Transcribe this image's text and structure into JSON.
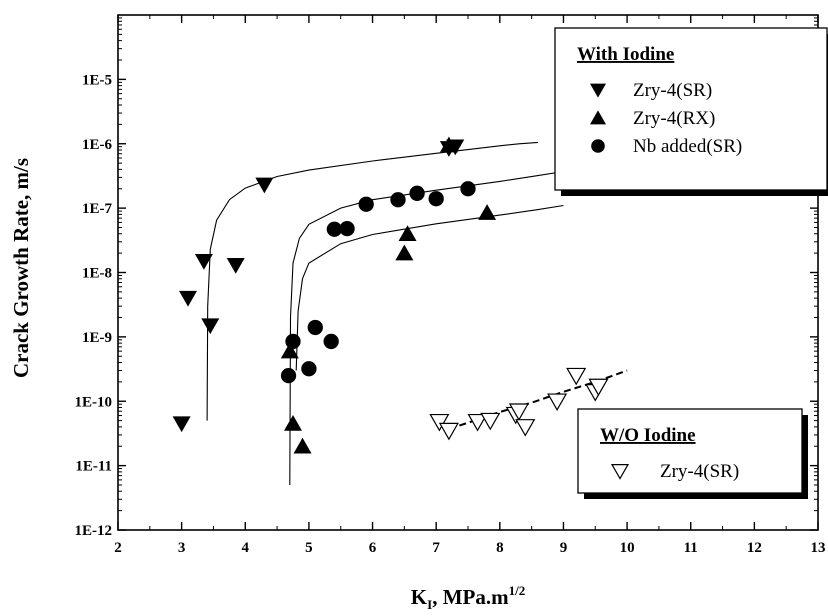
{
  "chart_data": {
    "type": "scatter",
    "xlabel": "K",
    "xlabel_sub": "I",
    "xlabel_rest": ", MPa.m",
    "xlabel_sup": "1/2",
    "ylabel": "Crack Growth Rate, m/s",
    "xlim": [
      2,
      13
    ],
    "ylim": [
      1e-12,
      0.0001
    ],
    "yscale": "log",
    "x_ticks": [
      "2",
      "3",
      "4",
      "5",
      "6",
      "7",
      "8",
      "9",
      "10",
      "11",
      "12",
      "13"
    ],
    "y_ticks": [
      "1E-12",
      "1E-11",
      "1E-10",
      "1E-9",
      "1E-8",
      "1E-7",
      "1E-6",
      "1E-5"
    ],
    "grid": false,
    "legends": [
      {
        "title": "With Iodine",
        "position": "top-right",
        "entries": [
          {
            "marker": "triangle-down-filled",
            "label": "Zry-4(SR)"
          },
          {
            "marker": "triangle-up-filled",
            "label": "Zry-4(RX)"
          },
          {
            "marker": "circle-filled",
            "label": "Nb added(SR)"
          }
        ]
      },
      {
        "title": "W/O Iodine",
        "position": "bottom-right",
        "entries": [
          {
            "marker": "triangle-down-open",
            "label": "Zry-4(SR)"
          }
        ]
      }
    ],
    "series": [
      {
        "marker": "triangle-down-filled",
        "points": [
          [
            3.0,
            4.5e-11
          ],
          [
            3.1,
            4e-09
          ],
          [
            3.35,
            1.5e-08
          ],
          [
            3.45,
            1.5e-09
          ],
          [
            3.85,
            1.3e-08
          ],
          [
            4.3,
            2.3e-07
          ],
          [
            7.2,
            8.5e-07
          ],
          [
            7.3,
            9e-07
          ]
        ]
      },
      {
        "marker": "triangle-up-filled",
        "points": [
          [
            4.7,
            6e-10
          ],
          [
            4.75,
            4.5e-11
          ],
          [
            4.9,
            2e-11
          ],
          [
            6.5,
            2e-08
          ],
          [
            6.55,
            4e-08
          ],
          [
            7.8,
            8.5e-08
          ],
          [
            7.2,
            9.5e-07
          ]
        ]
      },
      {
        "marker": "circle-filled",
        "points": [
          [
            4.68,
            2.5e-10
          ],
          [
            4.75,
            8.5e-10
          ],
          [
            5.0,
            3.2e-10
          ],
          [
            5.1,
            1.4e-09
          ],
          [
            5.35,
            8.5e-10
          ],
          [
            5.4,
            4.7e-08
          ],
          [
            5.6,
            4.8e-08
          ],
          [
            5.9,
            1.15e-07
          ],
          [
            6.4,
            1.35e-07
          ],
          [
            6.7,
            1.7e-07
          ],
          [
            7.0,
            1.4e-07
          ],
          [
            7.5,
            2e-07
          ]
        ]
      },
      {
        "marker": "triangle-down-open",
        "points": [
          [
            7.05,
            4.8e-11
          ],
          [
            7.2,
            3.5e-11
          ],
          [
            7.65,
            4.8e-11
          ],
          [
            7.85,
            5e-11
          ],
          [
            8.25,
            6.2e-11
          ],
          [
            8.3,
            7e-11
          ],
          [
            8.4,
            4e-11
          ],
          [
            8.9,
            1e-10
          ],
          [
            9.2,
            2.5e-10
          ],
          [
            9.5,
            1.4e-10
          ],
          [
            9.55,
            1.7e-10
          ]
        ]
      }
    ],
    "fit_curves": [
      {
        "style": "solid",
        "points": [
          [
            3.4,
            5e-11
          ],
          [
            3.41,
            3e-09
          ],
          [
            3.45,
            2.3e-08
          ],
          [
            3.55,
            6.5e-08
          ],
          [
            3.75,
            1.35e-07
          ],
          [
            4.0,
            2.05e-07
          ],
          [
            4.5,
            3.1e-07
          ],
          [
            5.0,
            3.9e-07
          ],
          [
            6.0,
            5.4e-07
          ],
          [
            7.0,
            7.1e-07
          ],
          [
            8.0,
            9.3e-07
          ],
          [
            8.3,
            1e-06
          ],
          [
            8.6,
            1.05e-06
          ]
        ]
      },
      {
        "style": "solid",
        "points": [
          [
            4.7,
            5e-12
          ],
          [
            4.71,
            2e-09
          ],
          [
            4.75,
            1.4e-08
          ],
          [
            4.85,
            3.4e-08
          ],
          [
            5.0,
            5.6e-08
          ],
          [
            5.5,
            1e-07
          ],
          [
            6.0,
            1.35e-07
          ],
          [
            7.0,
            1.9e-07
          ],
          [
            8.0,
            2.6e-07
          ],
          [
            8.6,
            3.2e-07
          ],
          [
            9.0,
            3.7e-07
          ]
        ]
      },
      {
        "style": "solid",
        "points": [
          [
            4.8,
            3e-10
          ],
          [
            4.83,
            2.5e-09
          ],
          [
            4.9,
            8e-09
          ],
          [
            5.0,
            1.4e-08
          ],
          [
            5.5,
            2.8e-08
          ],
          [
            6.0,
            3.9e-08
          ],
          [
            7.0,
            5.7e-08
          ],
          [
            8.0,
            7.8e-08
          ],
          [
            8.6,
            9.5e-08
          ],
          [
            9.0,
            1.1e-07
          ]
        ]
      },
      {
        "style": "dashed",
        "points": [
          [
            7.2,
            3.7e-11
          ],
          [
            7.6,
            5e-11
          ],
          [
            8.0,
            6.8e-11
          ],
          [
            8.5,
            9.5e-11
          ],
          [
            9.0,
            1.4e-10
          ],
          [
            9.5,
            2e-10
          ],
          [
            10.0,
            3e-10
          ]
        ]
      }
    ]
  }
}
